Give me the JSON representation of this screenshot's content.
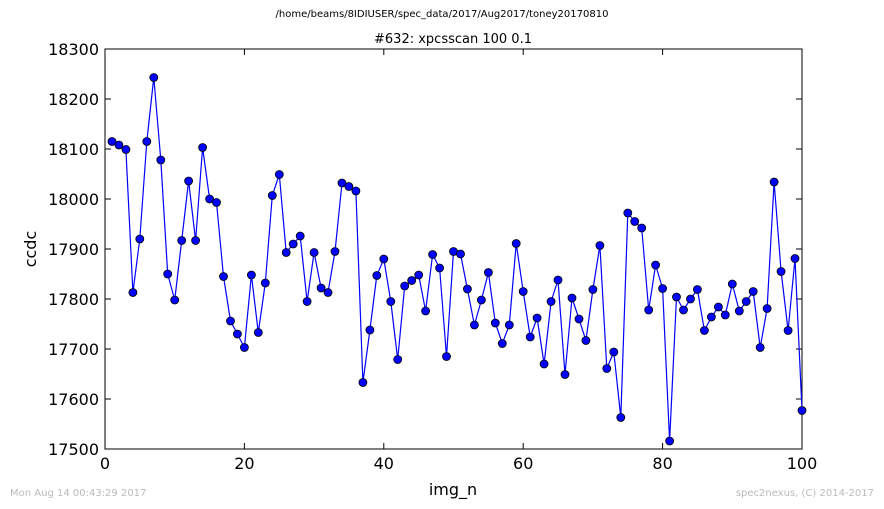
{
  "page": {
    "suptitle": "/home/beams/8IDIUSER/spec_data/2017/Aug2017/toney20170810",
    "timestamp": "Mon Aug 14 00:43:29 2017",
    "credit": "spec2nexus, (C) 2014-2017"
  },
  "chart_data": {
    "type": "line",
    "title": "#632: xpcsscan 100 0.1",
    "xlabel": "img_n",
    "ylabel": "ccdc",
    "xlim": [
      0,
      100
    ],
    "ylim": [
      17500,
      18300
    ],
    "xticks": [
      0,
      20,
      40,
      60,
      80,
      100
    ],
    "yticks": [
      17500,
      17600,
      17700,
      17800,
      17900,
      18000,
      18100,
      18200,
      18300
    ],
    "grid": false,
    "colors": {
      "line": "#0000ff",
      "marker_fill": "#0000ff",
      "marker_edge": "#000000"
    },
    "series": [
      {
        "x": [
          1,
          2,
          3,
          4,
          5,
          6,
          7,
          8,
          9,
          10,
          11,
          12,
          13,
          14,
          15,
          16,
          17,
          18,
          19,
          20,
          21,
          22,
          23,
          24,
          25,
          26,
          27,
          28,
          29,
          30,
          31,
          32,
          33,
          34,
          35,
          36,
          37,
          38,
          39,
          40,
          41,
          42,
          43,
          44,
          45,
          46,
          47,
          48,
          49,
          50,
          51,
          52,
          53,
          54,
          55,
          56,
          57,
          58,
          59,
          60,
          61,
          62,
          63,
          64,
          65,
          66,
          67,
          68,
          69,
          70,
          71,
          72,
          73,
          74,
          75,
          76,
          77,
          78,
          79,
          80,
          81,
          82,
          83,
          84,
          85,
          86,
          87,
          88,
          89,
          90,
          91,
          92,
          93,
          94,
          95,
          96,
          97,
          98,
          99,
          100
        ],
        "y": [
          18115,
          18108,
          18099,
          17813,
          17920,
          18115,
          18243,
          18078,
          17850,
          17798,
          17917,
          18036,
          17917,
          18103,
          18000,
          17993,
          17845,
          17756,
          17730,
          17703,
          17848,
          17733,
          17832,
          18007,
          18049,
          17893,
          17910,
          17926,
          17795,
          17893,
          17822,
          17813,
          17895,
          18032,
          18025,
          18016,
          17633,
          17738,
          17847,
          17880,
          17795,
          17679,
          17826,
          17837,
          17848,
          17776,
          17889,
          17862,
          17685,
          17895,
          17890,
          17820,
          17748,
          17798,
          17853,
          17752,
          17711,
          17748,
          17911,
          17815,
          17724,
          17762,
          17670,
          17795,
          17838,
          17649,
          17802,
          17760,
          17717,
          17819,
          17907,
          17661,
          17694,
          17563,
          17972,
          17955,
          17942,
          17778,
          17868,
          17821,
          17516,
          17804,
          17778,
          17800,
          17819,
          17737,
          17764,
          17784,
          17768,
          17830,
          17776,
          17795,
          17815,
          17703,
          17781,
          18034,
          17855,
          17737,
          17881,
          17577
        ]
      }
    ]
  }
}
